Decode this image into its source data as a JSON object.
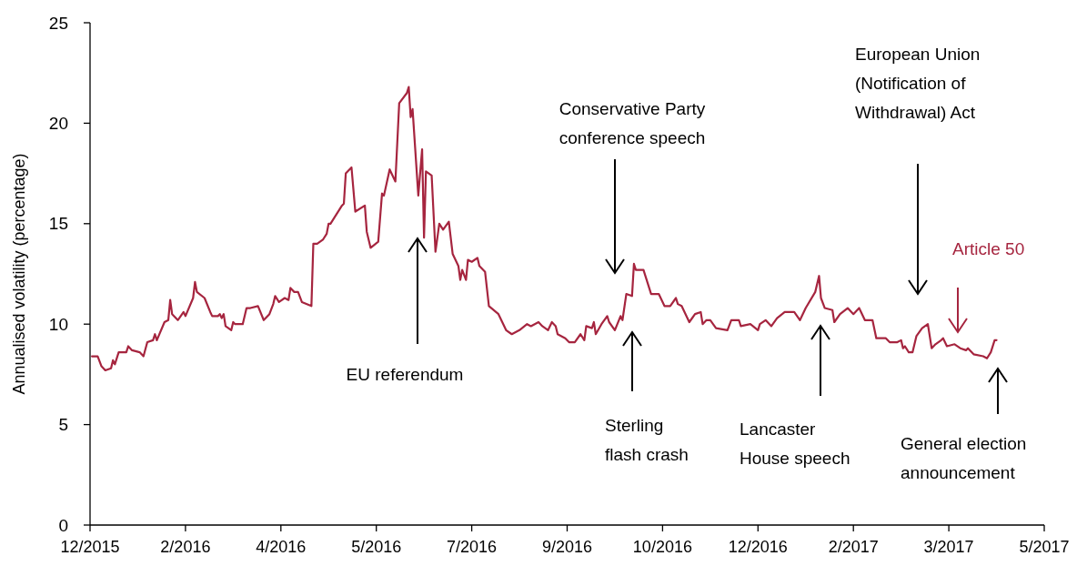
{
  "chart_data": {
    "type": "line",
    "ylabel": "Annualised volatility (percentage)",
    "xlim": [
      "2015-12-29",
      "2017-05-12"
    ],
    "xticks": [
      {
        "value": "2015-12-29",
        "label": "12/2015"
      },
      {
        "value": "2016-02-17",
        "label": "2/2016"
      },
      {
        "value": "2016-04-07",
        "label": "4/2016"
      },
      {
        "value": "2016-05-27",
        "label": "5/2016"
      },
      {
        "value": "2016-07-16",
        "label": "7/2016"
      },
      {
        "value": "2016-09-04",
        "label": "9/2016"
      },
      {
        "value": "2016-10-24",
        "label": "10/2016"
      },
      {
        "value": "2016-12-13",
        "label": "12/2016"
      },
      {
        "value": "2017-02-01",
        "label": "2/2017"
      },
      {
        "value": "2017-03-23",
        "label": "3/2017"
      },
      {
        "value": "2017-05-12",
        "label": "5/2017"
      }
    ],
    "ylim": [
      0,
      25
    ],
    "yticks": [
      0,
      5,
      10,
      15,
      20,
      25
    ],
    "grid": false,
    "marker": "none",
    "line_style": "solid",
    "series": [
      {
        "color": "#a6253f",
        "x": [
          "2015-12-30",
          "2016-01-02",
          "2016-01-04",
          "2016-01-06",
          "2016-01-09",
          "2016-01-10",
          "2016-01-11",
          "2016-01-13",
          "2016-01-17",
          "2016-01-18",
          "2016-01-20",
          "2016-01-24",
          "2016-01-26",
          "2016-01-28",
          "2016-01-31",
          "2016-02-01",
          "2016-02-02",
          "2016-02-06",
          "2016-02-08",
          "2016-02-09",
          "2016-02-10",
          "2016-02-13",
          "2016-02-16",
          "2016-02-17",
          "2016-02-21",
          "2016-02-22",
          "2016-02-23",
          "2016-02-27",
          "2016-03-01",
          "2016-03-02",
          "2016-03-05",
          "2016-03-06",
          "2016-03-07",
          "2016-03-08",
          "2016-03-09",
          "2016-03-12",
          "2016-03-13",
          "2016-03-14",
          "2016-03-18",
          "2016-03-20",
          "2016-03-22",
          "2016-03-26",
          "2016-03-29",
          "2016-04-01",
          "2016-04-03",
          "2016-04-04",
          "2016-04-06",
          "2016-04-09",
          "2016-04-11",
          "2016-04-12",
          "2016-04-14",
          "2016-04-16",
          "2016-04-18",
          "2016-04-23",
          "2016-04-24",
          "2016-04-26",
          "2016-04-29",
          "2016-05-01",
          "2016-05-02",
          "2016-05-03",
          "2016-05-09",
          "2016-05-10",
          "2016-05-11",
          "2016-05-14",
          "2016-05-16",
          "2016-05-21",
          "2016-05-22",
          "2016-05-24",
          "2016-05-28",
          "2016-05-30",
          "2016-05-31",
          "2016-06-03",
          "2016-06-06",
          "2016-06-08",
          "2016-06-12",
          "2016-06-13",
          "2016-06-14",
          "2016-06-15",
          "2016-06-18",
          "2016-06-20",
          "2016-06-21",
          "2016-06-22",
          "2016-06-25",
          "2016-06-27",
          "2016-06-29",
          "2016-07-01",
          "2016-07-04",
          "2016-07-06",
          "2016-07-09",
          "2016-07-10",
          "2016-07-11",
          "2016-07-13",
          "2016-07-14",
          "2016-07-16",
          "2016-07-19",
          "2016-07-20",
          "2016-07-23",
          "2016-07-25",
          "2016-07-30",
          "2016-08-03",
          "2016-08-06",
          "2016-08-10",
          "2016-08-14",
          "2016-08-16",
          "2016-08-20",
          "2016-08-22",
          "2016-08-25",
          "2016-08-27",
          "2016-08-29",
          "2016-08-30",
          "2016-09-03",
          "2016-09-05",
          "2016-09-08",
          "2016-09-11",
          "2016-09-13",
          "2016-09-14",
          "2016-09-17",
          "2016-09-18",
          "2016-09-19",
          "2016-09-22",
          "2016-09-25",
          "2016-09-26",
          "2016-09-29",
          "2016-10-02",
          "2016-10-03",
          "2016-10-05",
          "2016-10-08",
          "2016-10-09",
          "2016-10-10",
          "2016-10-14",
          "2016-10-18",
          "2016-10-22",
          "2016-10-25",
          "2016-10-28",
          "2016-10-31",
          "2016-11-01",
          "2016-11-03",
          "2016-11-07",
          "2016-11-10",
          "2016-11-13",
          "2016-11-14",
          "2016-11-16",
          "2016-11-18",
          "2016-11-21",
          "2016-11-27",
          "2016-11-29",
          "2016-12-01",
          "2016-12-03",
          "2016-12-04",
          "2016-12-09",
          "2016-12-13",
          "2016-12-14",
          "2016-12-17",
          "2016-12-20",
          "2016-12-23",
          "2016-12-27",
          "2017-01-01",
          "2017-01-04",
          "2017-01-07",
          "2017-01-12",
          "2017-01-14",
          "2017-01-15",
          "2017-01-17",
          "2017-01-21",
          "2017-01-22",
          "2017-01-25",
          "2017-01-29",
          "2017-02-01",
          "2017-02-04",
          "2017-02-07",
          "2017-02-11",
          "2017-02-13",
          "2017-02-18",
          "2017-02-20",
          "2017-02-24",
          "2017-02-26",
          "2017-02-27",
          "2017-02-28",
          "2017-03-02",
          "2017-03-04",
          "2017-03-06",
          "2017-03-09",
          "2017-03-12",
          "2017-03-14",
          "2017-03-16",
          "2017-03-19",
          "2017-03-20",
          "2017-03-22",
          "2017-03-26",
          "2017-03-29",
          "2017-04-01",
          "2017-04-02",
          "2017-04-05",
          "2017-04-10",
          "2017-04-12",
          "2017-04-14",
          "2017-04-16",
          "2017-04-17"
        ],
        "values": [
          8.4,
          8.4,
          7.9,
          7.7,
          7.8,
          8.2,
          8.0,
          8.6,
          8.6,
          8.9,
          8.7,
          8.6,
          8.4,
          9.1,
          9.2,
          9.5,
          9.2,
          10.1,
          10.2,
          11.2,
          10.5,
          10.2,
          10.6,
          10.4,
          11.3,
          12.1,
          11.6,
          11.3,
          10.6,
          10.4,
          10.4,
          10.5,
          10.3,
          10.5,
          9.9,
          9.7,
          10.1,
          10.0,
          10.0,
          10.8,
          10.8,
          10.9,
          10.2,
          10.5,
          11.0,
          11.4,
          11.1,
          11.3,
          11.2,
          11.8,
          11.6,
          11.6,
          11.1,
          10.9,
          14.0,
          14.0,
          14.2,
          14.5,
          15.0,
          15.0,
          15.9,
          16.0,
          17.5,
          17.8,
          15.6,
          15.9,
          14.6,
          13.8,
          14.1,
          16.5,
          16.4,
          17.7,
          17.1,
          21.0,
          21.5,
          21.8,
          20.3,
          20.7,
          16.4,
          18.7,
          14.3,
          17.6,
          17.4,
          13.6,
          15.0,
          14.7,
          15.1,
          13.5,
          12.9,
          12.2,
          12.7,
          12.2,
          13.2,
          13.1,
          13.3,
          12.9,
          12.6,
          10.9,
          10.5,
          9.7,
          9.5,
          9.7,
          10.0,
          9.9,
          10.1,
          9.9,
          9.7,
          10.1,
          9.9,
          9.5,
          9.3,
          9.1,
          9.1,
          9.5,
          9.2,
          9.9,
          9.8,
          10.1,
          9.5,
          10.0,
          10.4,
          10.1,
          9.7,
          10.4,
          10.2,
          11.5,
          11.4,
          13.0,
          12.7,
          12.7,
          11.5,
          11.5,
          10.9,
          10.9,
          11.3,
          11.0,
          10.9,
          10.1,
          10.5,
          10.6,
          10.0,
          10.2,
          10.2,
          9.8,
          9.7,
          10.2,
          10.2,
          10.2,
          9.9,
          10.0,
          9.7,
          10.0,
          10.2,
          9.9,
          10.3,
          10.6,
          10.6,
          10.2,
          10.8,
          11.6,
          12.4,
          11.3,
          10.8,
          10.7,
          10.1,
          10.5,
          10.8,
          10.5,
          10.8,
          10.2,
          10.2,
          9.3,
          9.3,
          9.1,
          9.1,
          9.2,
          8.8,
          8.9,
          8.6,
          8.6,
          9.4,
          9.8,
          10.0,
          8.8,
          9.0,
          9.2,
          9.3,
          8.9,
          9.0,
          8.8,
          8.7,
          8.8,
          8.5,
          8.4,
          8.3,
          8.6,
          9.2,
          9.2
        ]
      }
    ],
    "annotations": [
      "EU referendum",
      "Conservative Party conference speech",
      "Sterling flash crash",
      "Lancaster House speech",
      "European Union (Notification of Withdrawal) Act",
      "Article 50",
      "General election announcement"
    ]
  }
}
